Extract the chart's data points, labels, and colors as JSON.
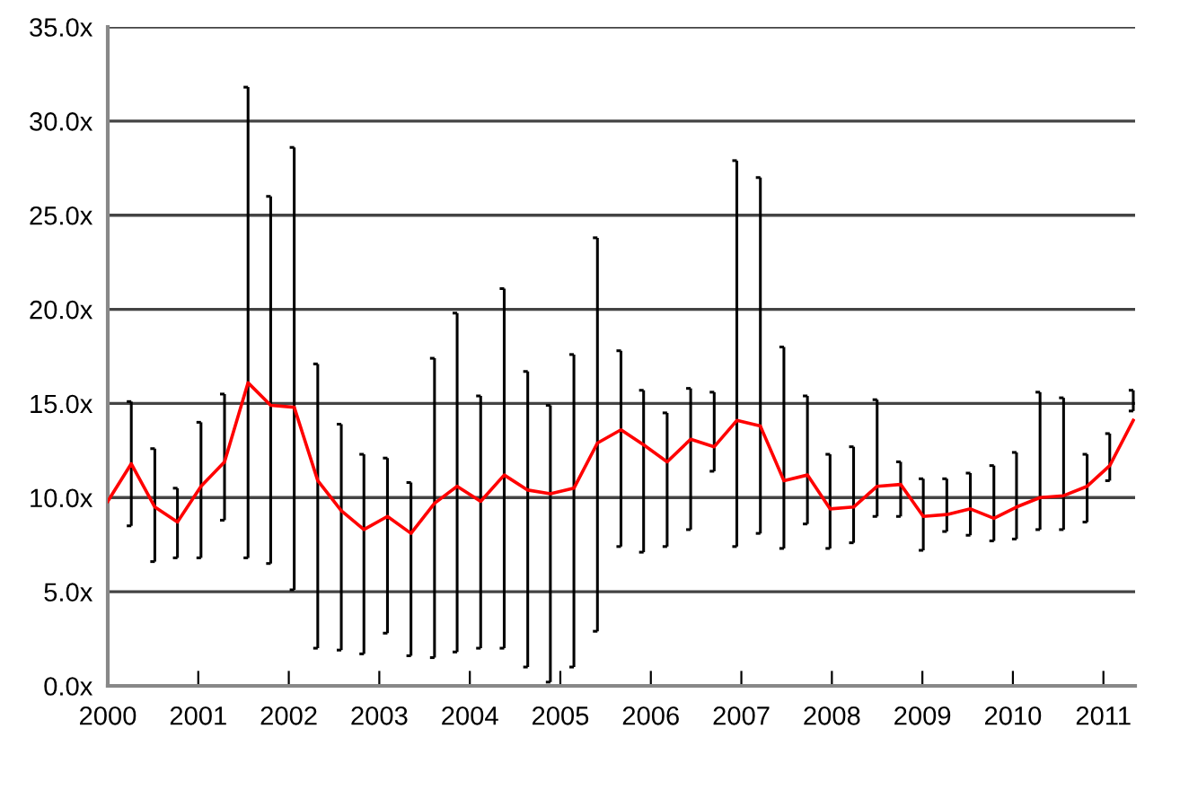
{
  "chart_data": {
    "type": "line",
    "x": [
      2000.0,
      2000.26,
      2000.52,
      2000.77,
      2001.03,
      2001.29,
      2001.55,
      2001.8,
      2002.06,
      2002.32,
      2002.58,
      2002.83,
      2003.09,
      2003.35,
      2003.61,
      2003.86,
      2004.12,
      2004.38,
      2004.64,
      2004.89,
      2005.15,
      2005.41,
      2005.67,
      2005.92,
      2006.18,
      2006.44,
      2006.7,
      2006.95,
      2007.21,
      2007.47,
      2007.73,
      2007.98,
      2008.24,
      2008.5,
      2008.76,
      2009.01,
      2009.27,
      2009.53,
      2009.79,
      2010.04,
      2010.3,
      2010.56,
      2010.82,
      2011.07,
      2011.33
    ],
    "series": [
      {
        "color": "#ff0000",
        "values": [
          9.8,
          11.8,
          9.5,
          8.7,
          10.6,
          11.9,
          16.1,
          14.9,
          14.8,
          10.9,
          9.3,
          8.3,
          9.0,
          8.1,
          9.7,
          10.6,
          9.8,
          11.2,
          10.4,
          10.2,
          10.5,
          12.9,
          13.6,
          12.8,
          11.9,
          13.1,
          12.7,
          14.1,
          13.8,
          10.9,
          11.2,
          9.4,
          9.5,
          10.6,
          10.7,
          9.0,
          9.1,
          9.4,
          8.9,
          9.5,
          10.0,
          10.1,
          10.6,
          11.7,
          14.1
        ],
        "errors": [
          [
            6.6,
            12.9
          ],
          [
            8.5,
            15.1
          ],
          [
            6.6,
            12.6
          ],
          [
            6.8,
            10.5
          ],
          [
            6.8,
            14.0
          ],
          [
            8.8,
            15.5
          ],
          [
            6.8,
            31.8
          ],
          [
            6.5,
            26.0
          ],
          [
            5.1,
            28.6
          ],
          [
            2.0,
            17.1
          ],
          [
            1.9,
            13.9
          ],
          [
            1.7,
            12.3
          ],
          [
            2.8,
            12.1
          ],
          [
            1.6,
            10.8
          ],
          [
            1.5,
            17.4
          ],
          [
            1.8,
            19.8
          ],
          [
            2.0,
            15.4
          ],
          [
            2.0,
            21.1
          ],
          [
            1.0,
            16.7
          ],
          [
            0.2,
            14.9
          ],
          [
            1.0,
            17.6
          ],
          [
            2.9,
            23.8
          ],
          [
            7.4,
            17.8
          ],
          [
            7.1,
            15.7
          ],
          [
            7.4,
            14.5
          ],
          [
            8.3,
            15.8
          ],
          [
            11.4,
            15.6
          ],
          [
            7.4,
            27.9
          ],
          [
            8.1,
            27.0
          ],
          [
            7.3,
            18.0
          ],
          [
            8.6,
            15.4
          ],
          [
            7.3,
            12.3
          ],
          [
            7.6,
            12.7
          ],
          [
            9.0,
            15.2
          ],
          [
            9.0,
            11.9
          ],
          [
            7.2,
            11.0
          ],
          [
            8.2,
            11.0
          ],
          [
            8.0,
            11.3
          ],
          [
            7.7,
            11.7
          ],
          [
            7.8,
            12.4
          ],
          [
            8.3,
            15.6
          ],
          [
            8.3,
            15.3
          ],
          [
            8.7,
            12.3
          ],
          [
            10.9,
            13.4
          ],
          [
            14.6,
            15.7
          ]
        ]
      }
    ],
    "xlim": [
      2000,
      2011.35
    ],
    "xticks": [
      2000,
      2001,
      2002,
      2003,
      2004,
      2005,
      2006,
      2007,
      2008,
      2009,
      2010,
      2011
    ],
    "ylim": [
      0,
      35
    ],
    "yticks": [
      {
        "value": 0,
        "label": "0.0x"
      },
      {
        "value": 5,
        "label": "5.0x"
      },
      {
        "value": 10,
        "label": "10.0x"
      },
      {
        "value": 15,
        "label": "15.0x"
      },
      {
        "value": 20,
        "label": "20.0x"
      },
      {
        "value": 25,
        "label": "25.0x"
      },
      {
        "value": 30,
        "label": "30.0x"
      },
      {
        "value": 35,
        "label": "35.0x"
      }
    ],
    "grid": "y",
    "marker": "none",
    "line_style": "solid",
    "legend": false
  }
}
